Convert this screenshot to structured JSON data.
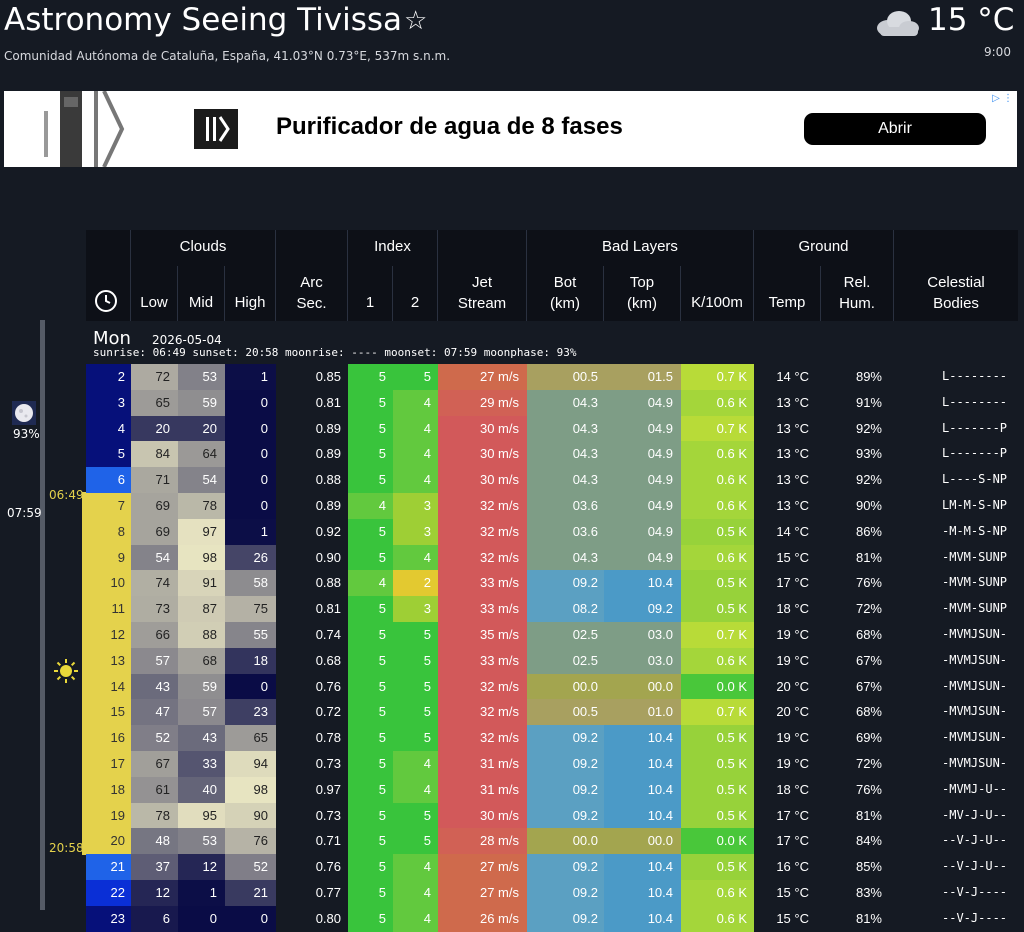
{
  "header": {
    "title": "Astronomy Seeing Tivissa",
    "subtitle": "Comunidad Autónoma de Cataluña, España, 41.03°N 0.73°E, 537m s.n.m.",
    "current_temp": "15 °C",
    "current_time": "9:00",
    "weather_icon": "cloud-icon",
    "favorite_icon": "star-icon"
  },
  "ad": {
    "text": "Purificador de agua de 8 fases",
    "button": "Abrir",
    "info_icon": "ad-choices-icon"
  },
  "columns": {
    "clouds": "Clouds",
    "low": "Low",
    "mid": "Mid",
    "high": "High",
    "arc": "Arc",
    "sec": "Sec.",
    "index": "Index",
    "i1": "1",
    "i2": "2",
    "jet1": "Jet",
    "jet2": "Stream",
    "bad_layers": "Bad Layers",
    "bot1": "Bot",
    "bot2": "(km)",
    "top1": "Top",
    "top2": "(km)",
    "k": "K/100m",
    "ground": "Ground",
    "temp": "Temp",
    "hum1": "Rel.",
    "hum2": "Hum.",
    "cel1": "Celestial",
    "cel2": "Bodies"
  },
  "day": {
    "name": "Mon",
    "date": "2026-05-04",
    "events": "sunrise: 06:49 sunset: 20:58 moonrise: ---- moonset: 07:59 moonphase: 93%",
    "moon_pct": "93%",
    "moonset": "07:59",
    "sunrise": "06:49",
    "sunset": "20:58"
  },
  "colors": {
    "night": "#06107a",
    "sunlit": "#e4d24c",
    "jet": "#d2595a",
    "index_good": "#39c43c"
  },
  "rows": [
    {
      "hour": "2",
      "low": "72",
      "mid": "53",
      "high": "1",
      "arc": "0.85",
      "i1": "5",
      "i2": "5",
      "jet": "27 m/s",
      "bot": "00.5",
      "top": "01.5",
      "k": "0.7 K",
      "temp": "14 °C",
      "hum": "89%",
      "cel": "L--------"
    },
    {
      "hour": "3",
      "low": "65",
      "mid": "59",
      "high": "0",
      "arc": "0.81",
      "i1": "5",
      "i2": "4",
      "jet": "29 m/s",
      "bot": "04.3",
      "top": "04.9",
      "k": "0.6 K",
      "temp": "13 °C",
      "hum": "91%",
      "cel": "L--------"
    },
    {
      "hour": "4",
      "low": "20",
      "mid": "20",
      "high": "0",
      "arc": "0.89",
      "i1": "5",
      "i2": "4",
      "jet": "30 m/s",
      "bot": "04.3",
      "top": "04.9",
      "k": "0.7 K",
      "temp": "13 °C",
      "hum": "92%",
      "cel": "L-------P"
    },
    {
      "hour": "5",
      "low": "84",
      "mid": "64",
      "high": "0",
      "arc": "0.89",
      "i1": "5",
      "i2": "4",
      "jet": "30 m/s",
      "bot": "04.3",
      "top": "04.9",
      "k": "0.6 K",
      "temp": "13 °C",
      "hum": "93%",
      "cel": "L-------P"
    },
    {
      "hour": "6",
      "low": "71",
      "mid": "54",
      "high": "0",
      "arc": "0.88",
      "i1": "5",
      "i2": "4",
      "jet": "30 m/s",
      "bot": "04.3",
      "top": "04.9",
      "k": "0.6 K",
      "temp": "13 °C",
      "hum": "92%",
      "cel": "L----S-NP"
    },
    {
      "hour": "7",
      "low": "69",
      "mid": "78",
      "high": "0",
      "arc": "0.89",
      "i1": "4",
      "i2": "3",
      "jet": "32 m/s",
      "bot": "03.6",
      "top": "04.9",
      "k": "0.6 K",
      "temp": "13 °C",
      "hum": "90%",
      "cel": "LM-M-S-NP"
    },
    {
      "hour": "8",
      "low": "69",
      "mid": "97",
      "high": "1",
      "arc": "0.92",
      "i1": "5",
      "i2": "3",
      "jet": "32 m/s",
      "bot": "03.6",
      "top": "04.9",
      "k": "0.5 K",
      "temp": "14 °C",
      "hum": "86%",
      "cel": "-M-M-S-NP"
    },
    {
      "hour": "9",
      "low": "54",
      "mid": "98",
      "high": "26",
      "arc": "0.90",
      "i1": "5",
      "i2": "4",
      "jet": "32 m/s",
      "bot": "04.3",
      "top": "04.9",
      "k": "0.6 K",
      "temp": "15 °C",
      "hum": "81%",
      "cel": "-MVM-SUNP"
    },
    {
      "hour": "10",
      "low": "74",
      "mid": "91",
      "high": "58",
      "arc": "0.88",
      "i1": "4",
      "i2": "2",
      "jet": "33 m/s",
      "bot": "09.2",
      "top": "10.4",
      "k": "0.5 K",
      "temp": "17 °C",
      "hum": "76%",
      "cel": "-MVM-SUNP"
    },
    {
      "hour": "11",
      "low": "73",
      "mid": "87",
      "high": "75",
      "arc": "0.81",
      "i1": "5",
      "i2": "3",
      "jet": "33 m/s",
      "bot": "08.2",
      "top": "09.2",
      "k": "0.5 K",
      "temp": "18 °C",
      "hum": "72%",
      "cel": "-MVM-SUNP"
    },
    {
      "hour": "12",
      "low": "66",
      "mid": "88",
      "high": "55",
      "arc": "0.74",
      "i1": "5",
      "i2": "5",
      "jet": "35 m/s",
      "bot": "02.5",
      "top": "03.0",
      "k": "0.7 K",
      "temp": "19 °C",
      "hum": "68%",
      "cel": "-MVMJSUN-"
    },
    {
      "hour": "13",
      "low": "57",
      "mid": "68",
      "high": "18",
      "arc": "0.68",
      "i1": "5",
      "i2": "5",
      "jet": "33 m/s",
      "bot": "02.5",
      "top": "03.0",
      "k": "0.6 K",
      "temp": "19 °C",
      "hum": "67%",
      "cel": "-MVMJSUN-"
    },
    {
      "hour": "14",
      "low": "43",
      "mid": "59",
      "high": "0",
      "arc": "0.76",
      "i1": "5",
      "i2": "5",
      "jet": "32 m/s",
      "bot": "00.0",
      "top": "00.0",
      "k": "0.0 K",
      "temp": "20 °C",
      "hum": "67%",
      "cel": "-MVMJSUN-"
    },
    {
      "hour": "15",
      "low": "47",
      "mid": "57",
      "high": "23",
      "arc": "0.72",
      "i1": "5",
      "i2": "5",
      "jet": "32 m/s",
      "bot": "00.5",
      "top": "01.0",
      "k": "0.7 K",
      "temp": "20 °C",
      "hum": "68%",
      "cel": "-MVMJSUN-"
    },
    {
      "hour": "16",
      "low": "52",
      "mid": "43",
      "high": "65",
      "arc": "0.78",
      "i1": "5",
      "i2": "5",
      "jet": "32 m/s",
      "bot": "09.2",
      "top": "10.4",
      "k": "0.5 K",
      "temp": "19 °C",
      "hum": "69%",
      "cel": "-MVMJSUN-"
    },
    {
      "hour": "17",
      "low": "67",
      "mid": "33",
      "high": "94",
      "arc": "0.73",
      "i1": "5",
      "i2": "4",
      "jet": "31 m/s",
      "bot": "09.2",
      "top": "10.4",
      "k": "0.5 K",
      "temp": "19 °C",
      "hum": "72%",
      "cel": "-MVMJSUN-"
    },
    {
      "hour": "18",
      "low": "61",
      "mid": "40",
      "high": "98",
      "arc": "0.97",
      "i1": "5",
      "i2": "4",
      "jet": "31 m/s",
      "bot": "09.2",
      "top": "10.4",
      "k": "0.5 K",
      "temp": "18 °C",
      "hum": "76%",
      "cel": "-MVMJ-U--"
    },
    {
      "hour": "19",
      "low": "78",
      "mid": "95",
      "high": "90",
      "arc": "0.73",
      "i1": "5",
      "i2": "5",
      "jet": "30 m/s",
      "bot": "09.2",
      "top": "10.4",
      "k": "0.5 K",
      "temp": "17 °C",
      "hum": "81%",
      "cel": "-MV-J-U--"
    },
    {
      "hour": "20",
      "low": "48",
      "mid": "53",
      "high": "76",
      "arc": "0.71",
      "i1": "5",
      "i2": "5",
      "jet": "28 m/s",
      "bot": "00.0",
      "top": "00.0",
      "k": "0.0 K",
      "temp": "17 °C",
      "hum": "84%",
      "cel": "--V-J-U--"
    },
    {
      "hour": "21",
      "low": "37",
      "mid": "12",
      "high": "52",
      "arc": "0.76",
      "i1": "5",
      "i2": "4",
      "jet": "27 m/s",
      "bot": "09.2",
      "top": "10.4",
      "k": "0.5 K",
      "temp": "16 °C",
      "hum": "85%",
      "cel": "--V-J-U--"
    },
    {
      "hour": "22",
      "low": "12",
      "mid": "1",
      "high": "21",
      "arc": "0.77",
      "i1": "5",
      "i2": "4",
      "jet": "27 m/s",
      "bot": "09.2",
      "top": "10.4",
      "k": "0.6 K",
      "temp": "15 °C",
      "hum": "83%",
      "cel": "--V-J----"
    },
    {
      "hour": "23",
      "low": "6",
      "mid": "0",
      "high": "0",
      "arc": "0.80",
      "i1": "5",
      "i2": "4",
      "jet": "26 m/s",
      "bot": "09.2",
      "top": "10.4",
      "k": "0.6 K",
      "temp": "15 °C",
      "hum": "81%",
      "cel": "--V-J----"
    }
  ]
}
